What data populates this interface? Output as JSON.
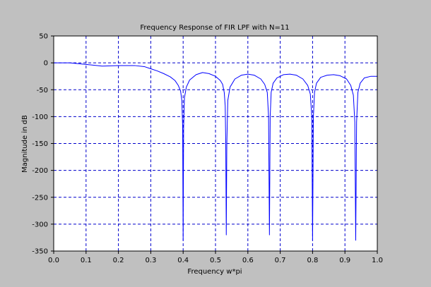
{
  "colors": {
    "figure_bg": "#c0c0c0",
    "plot_bg": "#ffffff",
    "grid": "#0000cc",
    "line": "#0000ff",
    "axis": "#000000"
  },
  "chart_data": {
    "type": "line",
    "title": "Frequency Response of FIR LPF with N=11",
    "xlabel": "Frequency w*pi",
    "ylabel": "Magnitude in dB",
    "xlim": [
      0,
      1
    ],
    "ylim": [
      -350,
      50
    ],
    "xticks": [
      0.0,
      0.1,
      0.2,
      0.3,
      0.4,
      0.5,
      0.6,
      0.7,
      0.8,
      0.9,
      1.0
    ],
    "xtick_labels": [
      "0.0",
      "0.1",
      "0.2",
      "0.3",
      "0.4",
      "0.5",
      "0.6",
      "0.7",
      "0.8",
      "0.9",
      "1.0"
    ],
    "yticks": [
      50,
      0,
      -50,
      -100,
      -150,
      -200,
      -250,
      -300,
      -350
    ],
    "ytick_labels": [
      "50",
      "0",
      "-50",
      "-100",
      "-150",
      "-200",
      "-250",
      "-300",
      "-350"
    ],
    "grid": true,
    "grid_style": "dashed",
    "legend": "none",
    "series": [
      {
        "x": [
          0.0,
          0.05,
          0.1,
          0.15,
          0.2,
          0.25,
          0.28,
          0.3,
          0.32,
          0.34,
          0.36,
          0.375,
          0.385,
          0.392,
          0.396,
          0.3985,
          0.4,
          0.4015,
          0.404,
          0.41,
          0.42,
          0.44,
          0.46,
          0.48,
          0.5,
          0.515,
          0.522,
          0.527,
          0.53,
          0.5317,
          0.5333,
          0.535,
          0.538,
          0.545,
          0.56,
          0.58,
          0.6,
          0.62,
          0.64,
          0.652,
          0.66,
          0.664,
          0.6667,
          0.669,
          0.672,
          0.678,
          0.69,
          0.71,
          0.73,
          0.75,
          0.77,
          0.785,
          0.793,
          0.7975,
          0.8,
          0.8025,
          0.806,
          0.812,
          0.825,
          0.845,
          0.865,
          0.885,
          0.905,
          0.918,
          0.926,
          0.9305,
          0.9333,
          0.936,
          0.94,
          0.947,
          0.96,
          0.98,
          1.0
        ],
        "y": [
          0,
          0,
          -3,
          -6,
          -5,
          -5,
          -7,
          -11,
          -15,
          -20,
          -26,
          -33,
          -42,
          -52,
          -70,
          -120,
          -330,
          -120,
          -65,
          -45,
          -32,
          -22,
          -18,
          -20,
          -25,
          -33,
          -40,
          -55,
          -80,
          -150,
          -320,
          -150,
          -70,
          -45,
          -30,
          -23,
          -21,
          -23,
          -30,
          -40,
          -55,
          -100,
          -320,
          -100,
          -55,
          -38,
          -28,
          -22,
          -21,
          -23,
          -30,
          -42,
          -58,
          -100,
          -330,
          -100,
          -55,
          -38,
          -27,
          -23,
          -22,
          -24,
          -30,
          -42,
          -60,
          -110,
          -330,
          -110,
          -55,
          -38,
          -28,
          -25,
          -25
        ]
      }
    ]
  }
}
